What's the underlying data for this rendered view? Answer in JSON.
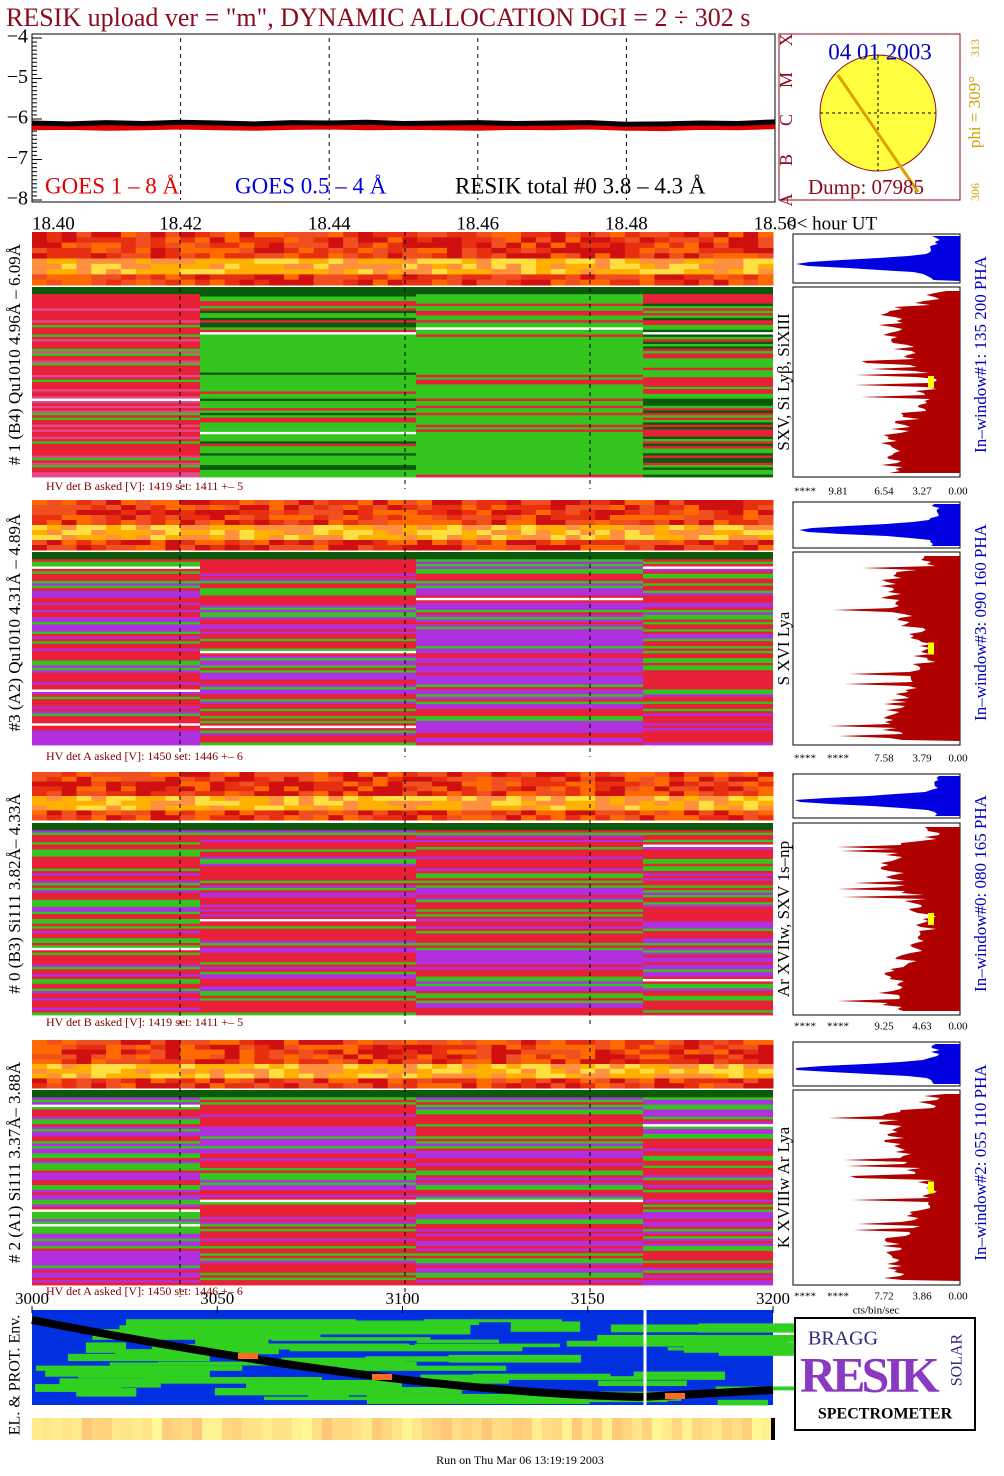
{
  "title": "RESIK upload ver = \"m\", DYNAMIC ALLOCATION  DGI =   2 ÷ 302 s",
  "chart_data": [
    {
      "type": "line",
      "xlim": [
        18.4,
        18.5
      ],
      "xticks": [
        {
          "value": 18.4,
          "label": "18.40"
        },
        {
          "value": 18.42,
          "label": "18.42"
        },
        {
          "value": 18.44,
          "label": "18.44"
        },
        {
          "value": 18.46,
          "label": "18.46"
        },
        {
          "value": 18.48,
          "label": "18.48"
        },
        {
          "value": 18.5,
          "label": "18.50"
        }
      ],
      "ylim": [
        -8,
        -4
      ],
      "yticks": [
        {
          "value": -8,
          "label": "−8"
        },
        {
          "value": -7,
          "label": "−7"
        },
        {
          "value": -6,
          "label": "−6"
        },
        {
          "value": -5,
          "label": "−5"
        },
        {
          "value": -4,
          "label": "−4"
        }
      ],
      "grid": true,
      "x": [
        18.4,
        18.405,
        18.41,
        18.415,
        18.42,
        18.425,
        18.43,
        18.435,
        18.44,
        18.445,
        18.45,
        18.455,
        18.46,
        18.465,
        18.47,
        18.475,
        18.48,
        18.485,
        18.49,
        18.495,
        18.5
      ],
      "series": [
        {
          "name": "GOES 1 – 8 Å",
          "color": "#e00000",
          "values": [
            -6.18,
            -6.17,
            -6.19,
            -6.18,
            -6.16,
            -6.18,
            -6.19,
            -6.17,
            -6.16,
            -6.18,
            -6.17,
            -6.18,
            -6.19,
            -6.17,
            -6.18,
            -6.16,
            -6.19,
            -6.2,
            -6.17,
            -6.18,
            -6.15
          ]
        },
        {
          "name": "GOES 0.5 – 4 Å",
          "color": "#0000e0",
          "values": [
            null,
            null,
            null,
            null,
            null,
            null,
            null,
            null,
            null,
            null,
            null,
            null,
            null,
            null,
            null,
            null,
            null,
            null,
            null,
            null,
            null
          ]
        },
        {
          "name": "RESIK total #0  3.8 – 4.3 Å",
          "color": "#000000",
          "values": [
            -6.1,
            -6.12,
            -6.09,
            -6.11,
            -6.08,
            -6.1,
            -6.12,
            -6.09,
            -6.1,
            -6.08,
            -6.11,
            -6.1,
            -6.09,
            -6.11,
            -6.1,
            -6.09,
            -6.13,
            -6.12,
            -6.1,
            -6.11,
            -6.07
          ]
        }
      ]
    },
    {
      "type": "heatmap",
      "title": "EL. & PROT. Env.",
      "xlim": [
        3000,
        3200
      ],
      "xticks": [
        3000,
        3050,
        3100,
        3150,
        3200
      ]
    }
  ],
  "time_unit": "<< hour UT",
  "sun": {
    "date": "04 01 2003",
    "dump": "Dump: 07985",
    "phi": "phi = 309°",
    "phi_high": "313",
    "phi_low": "306",
    "classes": [
      "A",
      "B",
      "C",
      "M",
      "X"
    ]
  },
  "panels": [
    {
      "label": "# 1 (B4) Qu1010 4.96Å – 6.09Å",
      "line_label": "SXV, Si Lyβ, SiXIII",
      "window": "In–window#1:  135 200 PHA",
      "hv": "HV det B asked [V]:  1419 set:  1411 +–    5",
      "pha_ticks": [
        "****",
        "9.81",
        "6.54",
        "3.27",
        "0.00"
      ]
    },
    {
      "label": "#3 (A2) Qu1010  4.31Å – 4.89Å",
      "line_label": "S XVI Lya",
      "window": "In–window#3:  090 160 PHA",
      "hv": "HV det A asked [V]:  1450 set:  1446 +–    6",
      "pha_ticks": [
        "****",
        "****",
        "7.58",
        "3.79",
        "0.00"
      ]
    },
    {
      "label": "# 0 (B3) Si111  3.82Å– 4.33Å",
      "line_label": "Ar XVIIw, SXV 1s–np",
      "window": "In–window#0:  080 165 PHA",
      "hv": "HV det B asked [V]:  1419 set:  1411 +–    5",
      "pha_ticks": [
        "****",
        "****",
        "9.25",
        "4.63",
        "0.00"
      ]
    },
    {
      "label": "# 2 (A1) Si111  3.37Å– 3.88Å",
      "line_label": "K XVIIIw  Ar Lya",
      "window": "In–window#2:  055 110 PHA",
      "hv": "HV det A asked [V]:  1450 set:  1446 +–    6",
      "pha_ticks": [
        "****",
        "****",
        "7.72",
        "3.86",
        "0.00"
      ]
    }
  ],
  "pha_unit": "cts/bin/sec",
  "logo": {
    "top": "BRAGG",
    "main": "RESIK",
    "side": "SOLAR",
    "bottom": "SPECTROMETER"
  },
  "footer": "Run on Thu Mar 06 13:19:19 2003"
}
